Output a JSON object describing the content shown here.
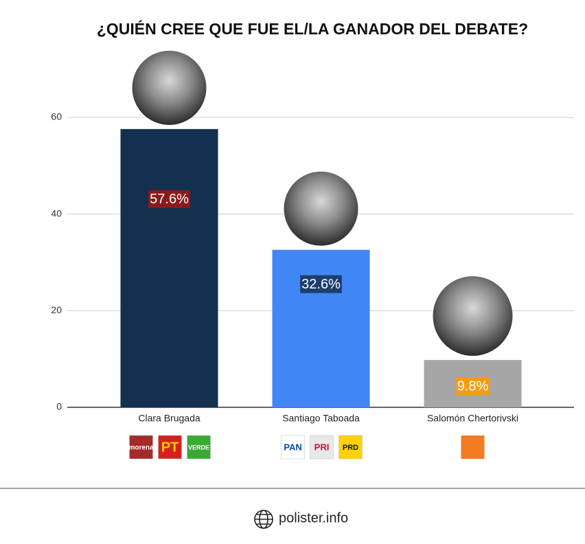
{
  "chart_data": {
    "type": "bar",
    "title": "¿QUIÉN CREE QUE FUE EL/LA GANADOR DEL DEBATE?",
    "categories": [
      "Clara Brugada",
      "Santiago Taboada",
      "Salomón Chertorivski"
    ],
    "values": [
      57.6,
      32.6,
      9.8
    ],
    "value_labels": [
      "57.6%",
      "32.6%",
      "9.8%"
    ],
    "colors": [
      "#13304f",
      "#4285f4",
      "#a6a6a6"
    ],
    "label_colors": [
      "#8b1a1a",
      "#1c3f6e",
      "#f39c12"
    ],
    "ylim": [
      0,
      60
    ],
    "yticks": [
      0,
      20,
      40,
      60
    ],
    "grid": true,
    "party_logos": [
      [
        "morena",
        "PT",
        "VERDE"
      ],
      [
        "PAN",
        "PRI",
        "PRD"
      ],
      []
    ]
  },
  "footer": "polister.info"
}
